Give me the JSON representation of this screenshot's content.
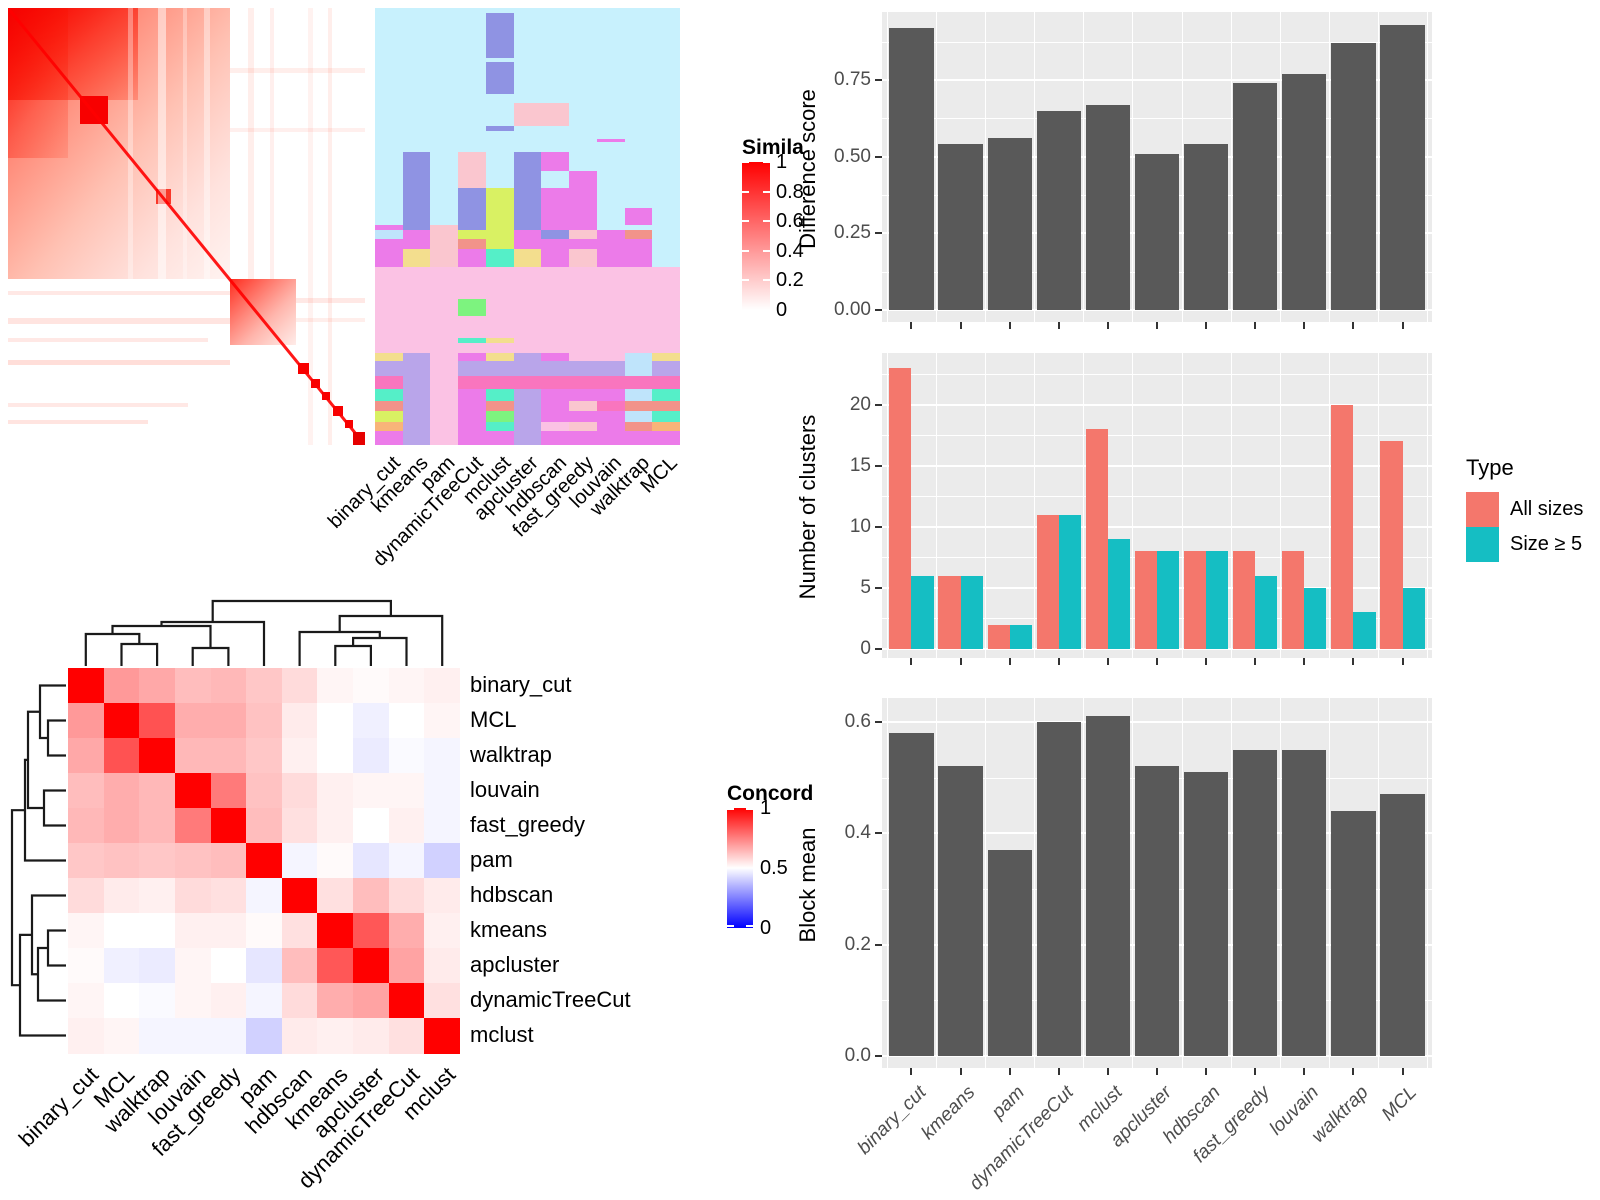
{
  "methods": [
    "binary_cut",
    "kmeans",
    "pam",
    "dynamicTreeCut",
    "mclust",
    "apcluster",
    "hdbscan",
    "fast_greedy",
    "louvain",
    "walktrap",
    "MCL"
  ],
  "similarity_legend": {
    "title": "Simila",
    "ticks": [
      "1",
      "0.8",
      "0.6",
      "0.4",
      "0.2",
      "0"
    ]
  },
  "concordance_legend": {
    "title": "Concord",
    "ticks": [
      "1",
      "0.5",
      "0"
    ]
  },
  "type_legend": {
    "title": "Type",
    "items": [
      {
        "label": "All sizes",
        "color": "#F4776C"
      },
      {
        "label": "Size ≥ 5",
        "color": "#15BEC3"
      }
    ]
  },
  "colors": {
    "bar": "#595959",
    "panel": "#EBEBEB",
    "grid": "#FFFFFF",
    "tick_text": "#4D4D4D",
    "dendrogram": "#1A1A1A"
  },
  "membership_heatmap": {
    "palette": {
      "C": "#C8F1FD",
      "P": "#8F93E3",
      "K": "#FAC6CF",
      "M": "#EC7BE9",
      "L": "#FBC2E4",
      "V": "#B9A5EA",
      "G": "#7DF37F",
      "E": "#D9F163",
      "T": "#55EFC8",
      "Y": "#F3DE8E",
      "S": "#F2938A",
      "H": "#F975BE",
      "B": "#BFE4FB",
      "O": "#F8B479"
    },
    "bands": [
      [
        12,
        "CCCCCCCCCCC"
      ],
      [
        105,
        "CCCCPCCCCCC"
      ],
      [
        8,
        "CCCCCCCCCCC"
      ],
      [
        75,
        "CCCCPCCCCCC"
      ],
      [
        20,
        "CCCCCCCCCCC"
      ],
      [
        55,
        "CCCCCKKCCCC"
      ],
      [
        12,
        "CCCCPCCCCCC"
      ],
      [
        18,
        "CCCCCCCCCCC"
      ],
      [
        6,
        "CCCCCCCCMCC"
      ],
      [
        24,
        "CCCCCCCCCCC"
      ],
      [
        45,
        "CPCKCPMCCCC"
      ],
      [
        40,
        "CPCKCPCMCCC"
      ],
      [
        45,
        "CPCPEPMMCCC"
      ],
      [
        40,
        "CPCPEPMMCMC"
      ],
      [
        12,
        "MPKPEPMMCCC"
      ],
      [
        20,
        "BMKEEMPKMSC"
      ],
      [
        25,
        "MMKSEMMMMMC"
      ],
      [
        40,
        "MYKMTYMKMMC"
      ],
      [
        75,
        "LLLLLLLLLLL"
      ],
      [
        40,
        "LLLGLLLLLLL"
      ],
      [
        50,
        "LLLLLLLLLLL"
      ],
      [
        12,
        "LLLTYLLLLLL"
      ],
      [
        25,
        "LLLLLLLLLLL"
      ],
      [
        18,
        "YVLMYVMLLBY"
      ],
      [
        35,
        "VVLVVVVVVBV"
      ],
      [
        30,
        "HVLHHHHHHHH"
      ],
      [
        27,
        "TVLMTVMMMBT"
      ],
      [
        25,
        "SVLMSVMKHSS"
      ],
      [
        25,
        "EVLMGVMMMBT"
      ],
      [
        20,
        "OVLMTVLKMSO"
      ],
      [
        33,
        "MVLMMVMMMMM"
      ]
    ]
  },
  "chart_data": [
    {
      "type": "heatmap",
      "name": "pairwise-similarity",
      "colormap": "white-to-red",
      "legend_title": "Simila",
      "legend_ticks": [
        "1",
        "0.8",
        "0.6",
        "0.4",
        "0.2",
        "0"
      ]
    },
    {
      "type": "heatmap",
      "name": "cluster-membership",
      "columns": [
        "binary_cut",
        "kmeans",
        "pam",
        "dynamicTreeCut",
        "mclust",
        "apcluster",
        "hdbscan",
        "fast_greedy",
        "louvain",
        "walktrap",
        "MCL"
      ]
    },
    {
      "type": "heatmap",
      "name": "concordance",
      "colormap": "blue-white-red",
      "legend_title": "Concord",
      "legend_ticks": [
        "1",
        "0.5",
        "0"
      ],
      "row_order": [
        "binary_cut",
        "MCL",
        "walktrap",
        "louvain",
        "fast_greedy",
        "pam",
        "hdbscan",
        "kmeans",
        "apcluster",
        "dynamicTreeCut",
        "mclust"
      ],
      "matrix": [
        [
          1.0,
          0.7,
          0.67,
          0.63,
          0.64,
          0.61,
          0.57,
          0.52,
          0.51,
          0.52,
          0.53
        ],
        [
          0.7,
          1.0,
          0.84,
          0.66,
          0.66,
          0.62,
          0.54,
          0.5,
          0.47,
          0.5,
          0.52
        ],
        [
          0.67,
          0.84,
          1.0,
          0.64,
          0.64,
          0.61,
          0.53,
          0.5,
          0.46,
          0.49,
          0.48
        ],
        [
          0.63,
          0.66,
          0.64,
          1.0,
          0.76,
          0.62,
          0.57,
          0.53,
          0.52,
          0.52,
          0.48
        ],
        [
          0.64,
          0.66,
          0.64,
          0.76,
          1.0,
          0.63,
          0.56,
          0.53,
          0.5,
          0.53,
          0.48
        ],
        [
          0.61,
          0.62,
          0.61,
          0.62,
          0.63,
          1.0,
          0.48,
          0.51,
          0.45,
          0.48,
          0.41
        ],
        [
          0.57,
          0.54,
          0.53,
          0.57,
          0.56,
          0.48,
          1.0,
          0.56,
          0.63,
          0.57,
          0.54
        ],
        [
          0.52,
          0.5,
          0.5,
          0.53,
          0.53,
          0.51,
          0.56,
          1.0,
          0.83,
          0.66,
          0.53
        ],
        [
          0.51,
          0.47,
          0.46,
          0.52,
          0.5,
          0.45,
          0.63,
          0.83,
          1.0,
          0.68,
          0.54
        ],
        [
          0.52,
          0.5,
          0.49,
          0.52,
          0.53,
          0.48,
          0.57,
          0.66,
          0.68,
          1.0,
          0.56
        ],
        [
          0.53,
          0.52,
          0.48,
          0.48,
          0.48,
          0.41,
          0.54,
          0.53,
          0.54,
          0.56,
          1.0
        ]
      ]
    },
    {
      "type": "bar",
      "ylabel": "Difference score",
      "categories": [
        "binary_cut",
        "kmeans",
        "pam",
        "dynamicTreeCut",
        "mclust",
        "apcluster",
        "hdbscan",
        "fast_greedy",
        "louvain",
        "walktrap",
        "MCL"
      ],
      "values": [
        0.92,
        0.54,
        0.56,
        0.65,
        0.67,
        0.51,
        0.54,
        0.74,
        0.77,
        0.87,
        0.93
      ],
      "yticks": [
        0,
        0.25,
        0.5,
        0.75
      ],
      "ytick_labels": [
        "0.00",
        "0.25",
        "0.50",
        "0.75"
      ],
      "ylim": [
        0,
        0.97
      ],
      "bar_color": "#595959",
      "grid": true
    },
    {
      "type": "bar",
      "ylabel": "Number of clusters",
      "legend_title": "Type",
      "categories": [
        "binary_cut",
        "kmeans",
        "pam",
        "dynamicTreeCut",
        "mclust",
        "apcluster",
        "hdbscan",
        "fast_greedy",
        "louvain",
        "walktrap",
        "MCL"
      ],
      "series": [
        {
          "name": "All sizes",
          "color": "#F4776C",
          "values": [
            23,
            6,
            2,
            11,
            18,
            8,
            8,
            8,
            8,
            20,
            17
          ]
        },
        {
          "name": "Size ≥ 5",
          "color": "#15BEC3",
          "values": [
            6,
            6,
            2,
            11,
            9,
            8,
            8,
            6,
            5,
            3,
            5
          ]
        }
      ],
      "yticks": [
        0,
        5,
        10,
        15,
        20
      ],
      "ytick_labels": [
        "0",
        "5",
        "10",
        "15",
        "20"
      ],
      "ylim": [
        0,
        24.2
      ],
      "grid": true,
      "legend_position": "right"
    },
    {
      "type": "bar",
      "ylabel": "Block mean",
      "categories": [
        "binary_cut",
        "kmeans",
        "pam",
        "dynamicTreeCut",
        "mclust",
        "apcluster",
        "hdbscan",
        "fast_greedy",
        "louvain",
        "walktrap",
        "MCL"
      ],
      "values": [
        0.58,
        0.52,
        0.37,
        0.6,
        0.61,
        0.52,
        0.51,
        0.55,
        0.55,
        0.44,
        0.47
      ],
      "yticks": [
        0,
        0.2,
        0.4,
        0.6
      ],
      "ytick_labels": [
        "0.0",
        "0.2",
        "0.4",
        "0.6"
      ],
      "ylim": [
        0,
        0.64
      ],
      "bar_color": "#595959",
      "grid": true
    }
  ]
}
